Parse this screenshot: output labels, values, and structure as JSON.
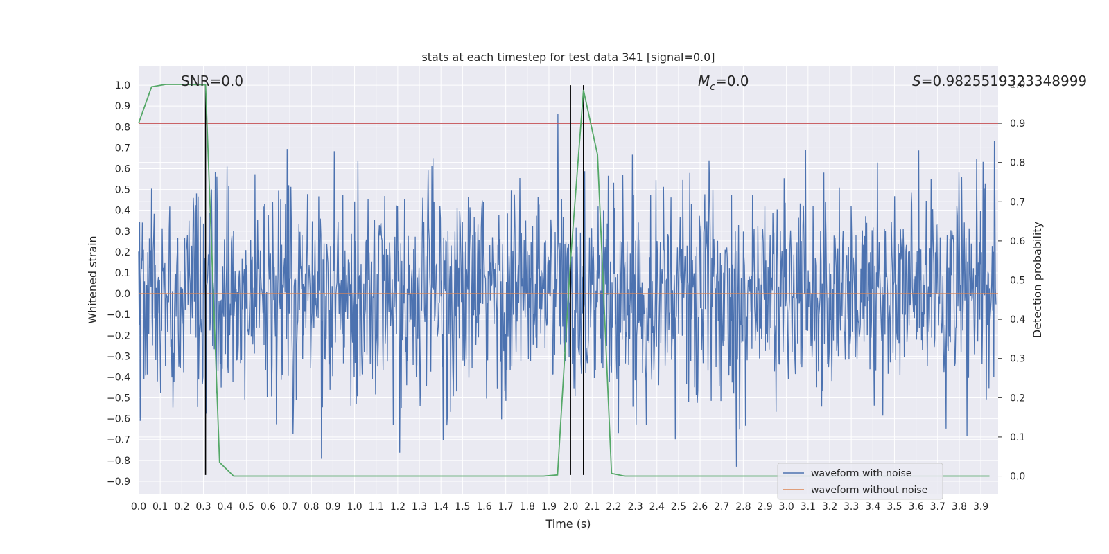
{
  "chart_data": {
    "type": "line",
    "title": "stats at each timestep for test data 341 [signal=0.0]",
    "xlabel": "Time (s)",
    "ylabel": "Whitened strain",
    "y2label": "Detection probability",
    "xlim": [
      0.0,
      3.98
    ],
    "ylim": [
      -0.96,
      1.09
    ],
    "y2lim": [
      -0.045,
      1.045
    ],
    "xticks": [
      "0.0",
      "0.1",
      "0.2",
      "0.3",
      "0.4",
      "0.5",
      "0.6",
      "0.7",
      "0.8",
      "0.9",
      "1.0",
      "1.1",
      "1.2",
      "1.3",
      "1.4",
      "1.5",
      "1.6",
      "1.7",
      "1.8",
      "1.9",
      "2.0",
      "2.1",
      "2.2",
      "2.3",
      "2.4",
      "2.5",
      "2.6",
      "2.7",
      "2.8",
      "2.9",
      "3.0",
      "3.1",
      "3.2",
      "3.3",
      "3.4",
      "3.5",
      "3.6",
      "3.7",
      "3.8",
      "3.9"
    ],
    "yticks": [
      "-0.9",
      "-0.8",
      "-0.7",
      "-0.6",
      "-0.5",
      "-0.4",
      "-0.3",
      "-0.2",
      "-0.1",
      "0.0",
      "0.1",
      "0.2",
      "0.3",
      "0.4",
      "0.5",
      "0.6",
      "0.7",
      "0.8",
      "0.9",
      "1.0"
    ],
    "y2ticks": [
      "0.0",
      "0.1",
      "0.2",
      "0.3",
      "0.4",
      "0.5",
      "0.6",
      "0.7",
      "0.8",
      "0.9",
      "1.0"
    ],
    "annotations": {
      "snr": "SNR=0.0",
      "mc_symbol": "M",
      "mc_sub": "c",
      "mc_value": "=0.0",
      "s_symbol": "S",
      "s_value": "=0.9825519323348999"
    },
    "series": [
      {
        "name": "waveform with noise",
        "color": "#4c72b0",
        "kind": "noise",
        "amplitude_range": [
          -0.83,
          1.0
        ]
      },
      {
        "name": "waveform without noise",
        "color": "#dd8452",
        "kind": "constant",
        "value": 0.0
      }
    ],
    "detection_probability": {
      "color": "#55a868",
      "x": [
        0.0,
        0.06,
        0.125,
        0.19,
        0.31,
        0.375,
        0.44,
        1.0,
        1.5,
        1.875,
        1.94,
        2.0,
        2.06,
        2.125,
        2.19,
        2.25,
        3.0,
        3.5,
        3.94
      ],
      "y": [
        0.9,
        0.993,
        0.999,
        0.999,
        0.998,
        0.035,
        0.0,
        0.0,
        0.0,
        0.0,
        0.003,
        0.55,
        0.985,
        0.82,
        0.007,
        0.0,
        0.0,
        0.0,
        0.0
      ]
    },
    "threshold": {
      "color": "#c44e52",
      "y2": 0.9
    },
    "vlines": {
      "color": "#000000",
      "x": [
        0.31,
        2.0,
        2.06
      ],
      "ymin": -0.87,
      "ymax": 1.0
    },
    "legend": {
      "position": "lower-right"
    }
  }
}
